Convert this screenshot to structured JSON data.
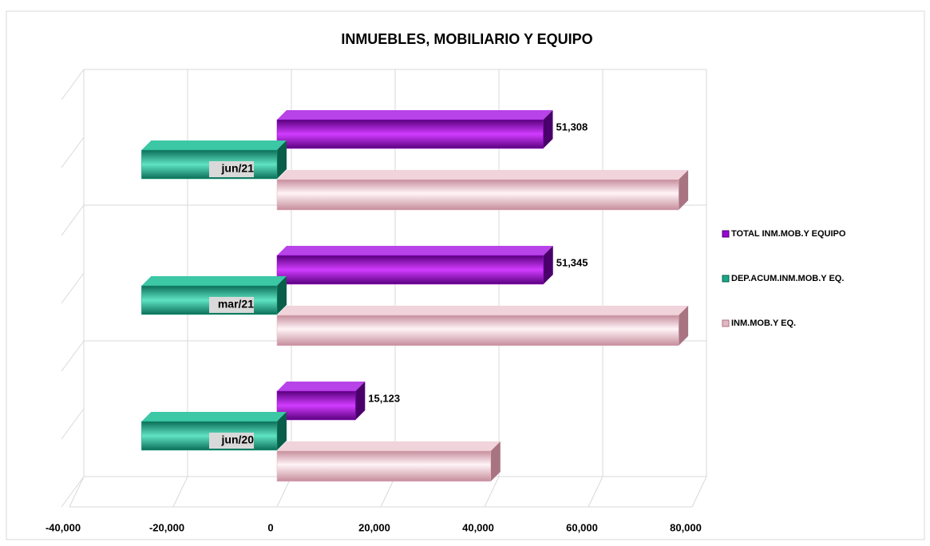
{
  "chart_data": {
    "type": "bar",
    "orientation": "horizontal",
    "title": "INMUEBLES, MOBILIARIO Y EQUIPO",
    "categories": [
      "jun/21",
      "mar/21",
      "jun/20"
    ],
    "series": [
      {
        "name": "TOTAL INM.MOB.Y EQUIPO",
        "color": "#9a06d4",
        "values": [
          51308,
          51345,
          15123
        ],
        "value_labels": [
          "51,308",
          "51,345",
          "15,123"
        ]
      },
      {
        "name": "DEP.ACUM.INM.MOB.Y EQ.",
        "color": "#19a887",
        "values": [
          -26100,
          -26100,
          -26100
        ]
      },
      {
        "name": "INM.MOB.Y EQ.",
        "color": "#e2b6c2",
        "values": [
          77400,
          77400,
          41200
        ]
      }
    ],
    "xlim": [
      -40000,
      80000
    ],
    "xticks": [
      {
        "value": -40000,
        "label": "-40,000"
      },
      {
        "value": -20000,
        "label": "-20,000"
      },
      0,
      {
        "value": 20000,
        "label": "20,000"
      },
      {
        "value": 40000,
        "label": "40,000"
      },
      {
        "value": 60000,
        "label": "60,000"
      },
      {
        "value": 80000,
        "label": "80,000"
      }
    ],
    "grid": true,
    "legend": "right"
  }
}
